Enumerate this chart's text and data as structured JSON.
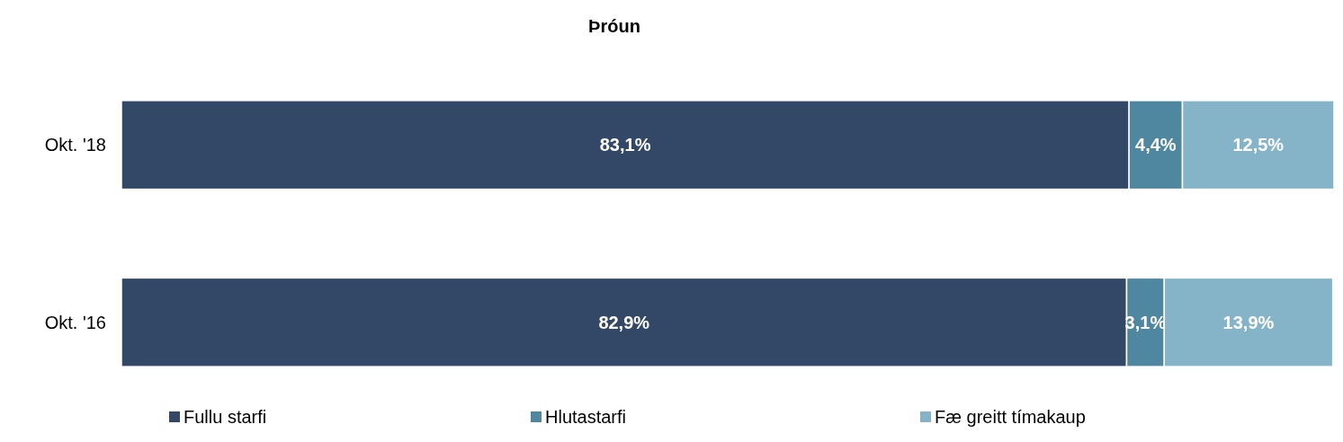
{
  "chart_data": {
    "type": "bar",
    "orientation": "horizontal",
    "stacked": true,
    "title": "Þróun",
    "categories": [
      "Okt. '18",
      "Okt. '16"
    ],
    "series": [
      {
        "name": "Fullu starfi",
        "color": "#334766",
        "values": [
          83.1,
          82.9
        ],
        "value_labels": [
          "83,1%",
          "82,9%"
        ]
      },
      {
        "name": "Hlutastarfi",
        "color": "#4f86a0",
        "values": [
          4.4,
          3.1
        ],
        "value_labels": [
          "4,4%",
          "3,1%"
        ]
      },
      {
        "name": "Fæ greitt tímakaup",
        "color": "#85b4c9",
        "values": [
          12.5,
          13.9
        ],
        "value_labels": [
          "12,5%",
          "13,9%"
        ]
      }
    ],
    "legend": "bottom"
  }
}
